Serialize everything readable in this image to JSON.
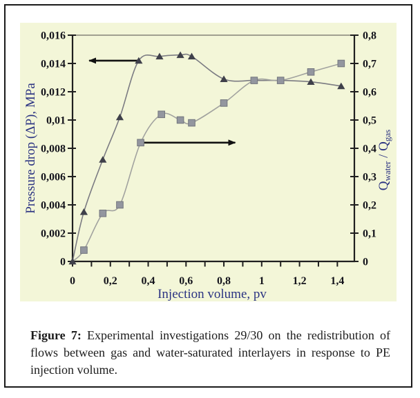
{
  "figure": {
    "caption": {
      "figure_label": "Figure 7:",
      "line1_rest": "Experimental investigations 29/30 on the redistribution of",
      "line2": "flows between gas and water-saturated interlayers in response to PE",
      "line3": "injection volume."
    }
  },
  "chart_data": {
    "type": "line",
    "xlabel": "Injection volume, pv",
    "ylabel_left": "Pressure drop (ΔP), MPa",
    "ylabel_right_text": "Qwater / Qgas",
    "ylabel_right_parts": [
      {
        "t": "Q"
      },
      {
        "t": "water",
        "sub": true
      },
      {
        "t": " / Q"
      },
      {
        "t": "gas",
        "sub": true
      }
    ],
    "xlim": [
      0,
      1.49
    ],
    "ylim_left": [
      0,
      0.016
    ],
    "ylim_right": [
      0,
      0.8
    ],
    "grid": "top line only",
    "legend_position": "none",
    "x_ticks": [
      {
        "v": 0,
        "label": "0"
      },
      {
        "v": 0.1
      },
      {
        "v": 0.2,
        "label": "0,2"
      },
      {
        "v": 0.3
      },
      {
        "v": 0.4,
        "label": "0,4"
      },
      {
        "v": 0.5
      },
      {
        "v": 0.6,
        "label": "0,6"
      },
      {
        "v": 0.7
      },
      {
        "v": 0.8,
        "label": "0,8"
      },
      {
        "v": 0.9
      },
      {
        "v": 1,
        "label": "1"
      },
      {
        "v": 1.1
      },
      {
        "v": 1.2,
        "label": "1,2"
      },
      {
        "v": 1.3
      },
      {
        "v": 1.4,
        "label": "1,4"
      }
    ],
    "left_ticks": [
      {
        "v": 0,
        "label": "0"
      },
      {
        "v": 0.002,
        "label": "0,002"
      },
      {
        "v": 0.004,
        "label": "0,004"
      },
      {
        "v": 0.006,
        "label": "0,006"
      },
      {
        "v": 0.008,
        "label": "0,008"
      },
      {
        "v": 0.01,
        "label": "0,01"
      },
      {
        "v": 0.012,
        "label": "0,012"
      },
      {
        "v": 0.014,
        "label": "0,014"
      },
      {
        "v": 0.016,
        "label": "0,016"
      }
    ],
    "right_ticks": [
      {
        "v": 0,
        "label": "0"
      },
      {
        "v": 0.1,
        "label": "0,1"
      },
      {
        "v": 0.2,
        "label": "0,2"
      },
      {
        "v": 0.3,
        "label": "0,3"
      },
      {
        "v": 0.4,
        "label": "0,4"
      },
      {
        "v": 0.5,
        "label": "0,5"
      },
      {
        "v": 0.6,
        "label": "0,6"
      },
      {
        "v": 0.7,
        "label": "0,7"
      },
      {
        "v": 0.8,
        "label": "0,8"
      }
    ],
    "series": [
      {
        "name": "Pressure drop (ΔP), MPa",
        "axis": "left",
        "marker": "triangle",
        "marker_color": "#3f404a",
        "line_color": "#7b7b82",
        "x": [
          0,
          0.06,
          0.16,
          0.25,
          0.35,
          0.46,
          0.57,
          0.63,
          0.8,
          0.96,
          1.1,
          1.26,
          1.42
        ],
        "values": [
          0,
          0.0035,
          0.0072,
          0.0102,
          0.0142,
          0.0145,
          0.0146,
          0.0145,
          0.0129,
          0.0128,
          0.0128,
          0.0127,
          0.0124
        ]
      },
      {
        "name": "Qwater / Qgas",
        "axis": "right",
        "marker": "square",
        "marker_color": "#93969f",
        "marker_stroke": "#72757d",
        "line_color": "#a1a29f",
        "skip_markers": [
          0
        ],
        "x": [
          0,
          0.06,
          0.16,
          0.25,
          0.36,
          0.47,
          0.57,
          0.63,
          0.8,
          0.96,
          1.1,
          1.26,
          1.42
        ],
        "values": [
          0,
          0.04,
          0.17,
          0.2,
          0.42,
          0.52,
          0.5,
          0.49,
          0.56,
          0.64,
          0.64,
          0.67,
          0.7
        ]
      }
    ],
    "annotations": [
      {
        "type": "arrow",
        "axis": "left",
        "from": [
          0.35,
          0.0142
        ],
        "to": [
          0.088,
          0.0142
        ]
      },
      {
        "type": "arrow",
        "axis": "right",
        "from": [
          0.378,
          0.42
        ],
        "to": [
          0.86,
          0.42
        ]
      }
    ],
    "colors": {
      "plot_bg": "#f3f6d8",
      "axis": "#1f1f1f",
      "top_line": "#6e6e66",
      "tick_label": "#14141c",
      "axis_title": "#2b3382",
      "arrow": "#111111"
    }
  }
}
